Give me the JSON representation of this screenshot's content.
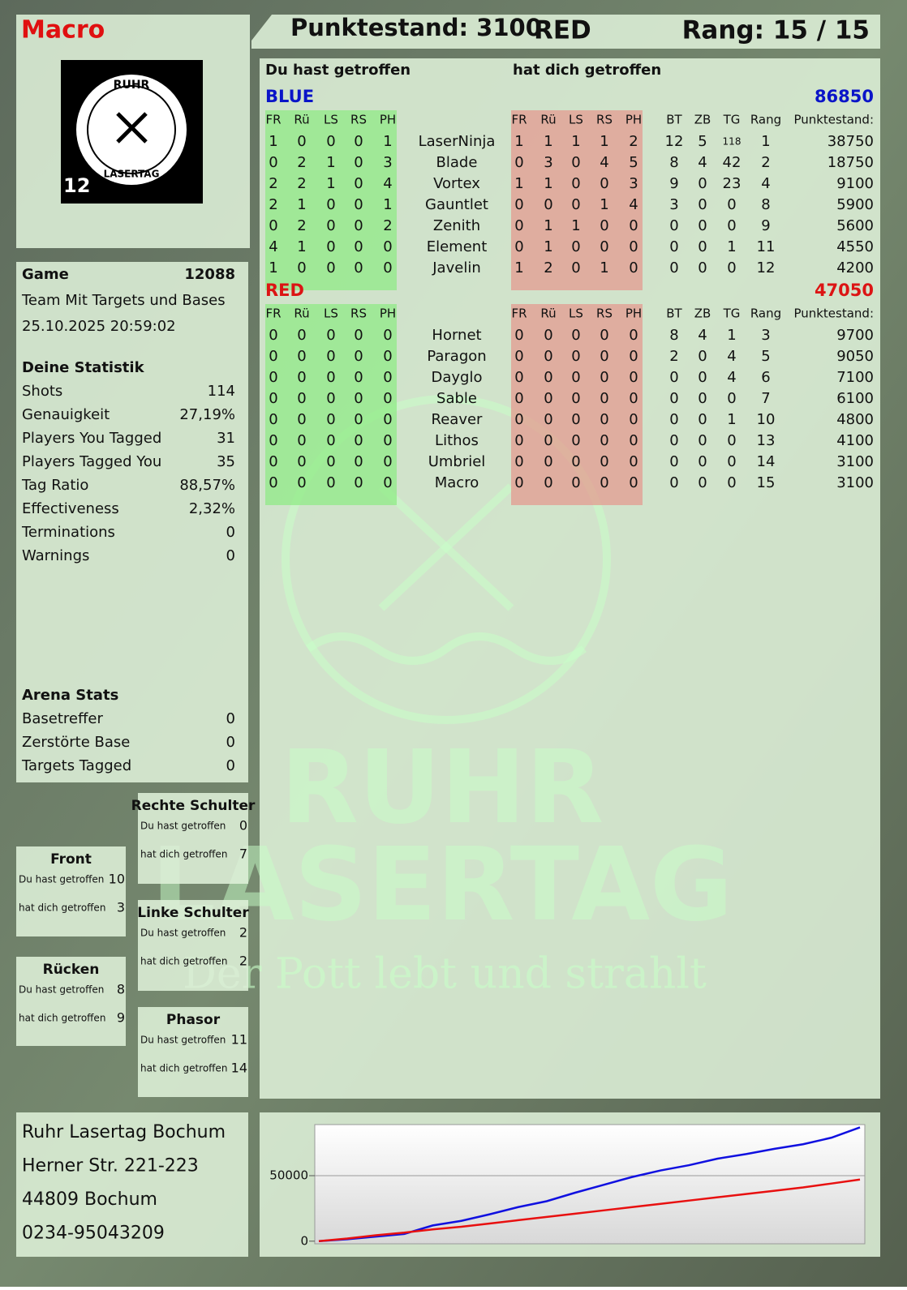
{
  "header": {
    "player": "Macro",
    "score": "Punktestand: 3100",
    "team": "RED",
    "rank": "Rang: 15 / 15"
  },
  "logo": {
    "top": "RUHR",
    "bottom": "LASERTAG",
    "badge": "12"
  },
  "watermark": {
    "line1": "RUHR",
    "line2": "LASERTAG",
    "slogan": "Der Pott lebt und strahlt"
  },
  "game": {
    "label": "Game",
    "id": "12088",
    "mode": "Team Mit Targets und Bases",
    "date": "25.10.2025 20:59:02"
  },
  "stats": {
    "title": "Deine Statistik",
    "rows": [
      [
        "Shots",
        "114"
      ],
      [
        "Genauigkeit",
        "27,19%"
      ],
      [
        "Players You Tagged",
        "31"
      ],
      [
        "Players Tagged You",
        "35"
      ],
      [
        "Tag Ratio",
        "88,57%"
      ],
      [
        "Effectiveness",
        "2,32%"
      ],
      [
        "Terminations",
        "0"
      ],
      [
        "Warnings",
        "0"
      ]
    ]
  },
  "arena": {
    "title": "Arena Stats",
    "rows": [
      [
        "Basetreffer",
        "0"
      ],
      [
        "Zerstörte Base",
        "0"
      ],
      [
        "Targets Tagged",
        "0"
      ]
    ]
  },
  "zones": [
    {
      "title": "Front",
      "hit_label": "Du hast getroffen",
      "hit": 10,
      "got_label": "hat dich getroffen",
      "got": 3
    },
    {
      "title": "Rechte Schulter",
      "hit_label": "Du hast getroffen",
      "hit": 0,
      "got_label": "hat dich getroffen",
      "got": 7
    },
    {
      "title": "Linke Schulter",
      "hit_label": "Du hast getroffen",
      "hit": 2,
      "got_label": "hat dich getroffen",
      "got": 2
    },
    {
      "title": "Rücken",
      "hit_label": "Du hast getroffen",
      "hit": 8,
      "got_label": "hat dich getroffen",
      "got": 9
    },
    {
      "title": "Phasor",
      "hit_label": "Du hast getroffen",
      "hit": 11,
      "got_label": "hat dich getroffen",
      "got": 14
    }
  ],
  "scoreboard": {
    "hit_heading": "Du hast getroffen",
    "got_heading": "hat dich getroffen",
    "hit_columns": [
      "FR",
      "Rü",
      "LS",
      "RS",
      "PH"
    ],
    "got_columns": [
      "FR",
      "Rü",
      "LS",
      "RS",
      "PH"
    ],
    "stat_columns": [
      "BT",
      "ZB",
      "TG",
      "Rang",
      "Punktestand:"
    ],
    "teams": [
      {
        "name": "BLUE",
        "color": "#0a14c8",
        "score": 86850,
        "players": [
          {
            "name": "LaserNinja",
            "hit": [
              1,
              0,
              0,
              0,
              1
            ],
            "got": [
              1,
              1,
              1,
              1,
              2
            ],
            "stats": [
              12,
              5,
              118,
              1,
              38750
            ]
          },
          {
            "name": "Blade",
            "hit": [
              0,
              2,
              1,
              0,
              3
            ],
            "got": [
              0,
              3,
              0,
              4,
              5
            ],
            "stats": [
              8,
              4,
              42,
              2,
              18750
            ]
          },
          {
            "name": "Vortex",
            "hit": [
              2,
              2,
              1,
              0,
              4
            ],
            "got": [
              1,
              1,
              0,
              0,
              3
            ],
            "stats": [
              9,
              0,
              23,
              4,
              9100
            ]
          },
          {
            "name": "Gauntlet",
            "hit": [
              2,
              1,
              0,
              0,
              1
            ],
            "got": [
              0,
              0,
              0,
              1,
              4
            ],
            "stats": [
              3,
              0,
              0,
              8,
              5900
            ]
          },
          {
            "name": "Zenith",
            "hit": [
              0,
              2,
              0,
              0,
              2
            ],
            "got": [
              0,
              1,
              1,
              0,
              0
            ],
            "stats": [
              0,
              0,
              0,
              9,
              5600
            ]
          },
          {
            "name": "Element",
            "hit": [
              4,
              1,
              0,
              0,
              0
            ],
            "got": [
              0,
              1,
              0,
              0,
              0
            ],
            "stats": [
              0,
              0,
              1,
              11,
              4550
            ]
          },
          {
            "name": "Javelin",
            "hit": [
              1,
              0,
              0,
              0,
              0
            ],
            "got": [
              1,
              2,
              0,
              1,
              0
            ],
            "stats": [
              0,
              0,
              0,
              12,
              4200
            ]
          }
        ]
      },
      {
        "name": "RED",
        "color": "#dc1414",
        "score": 47050,
        "players": [
          {
            "name": "Hornet",
            "hit": [
              0,
              0,
              0,
              0,
              0
            ],
            "got": [
              0,
              0,
              0,
              0,
              0
            ],
            "stats": [
              8,
              4,
              1,
              3,
              9700
            ]
          },
          {
            "name": "Paragon",
            "hit": [
              0,
              0,
              0,
              0,
              0
            ],
            "got": [
              0,
              0,
              0,
              0,
              0
            ],
            "stats": [
              2,
              0,
              4,
              5,
              9050
            ]
          },
          {
            "name": "Dayglo",
            "hit": [
              0,
              0,
              0,
              0,
              0
            ],
            "got": [
              0,
              0,
              0,
              0,
              0
            ],
            "stats": [
              0,
              0,
              4,
              6,
              7100
            ]
          },
          {
            "name": "Sable",
            "hit": [
              0,
              0,
              0,
              0,
              0
            ],
            "got": [
              0,
              0,
              0,
              0,
              0
            ],
            "stats": [
              0,
              0,
              0,
              7,
              6100
            ]
          },
          {
            "name": "Reaver",
            "hit": [
              0,
              0,
              0,
              0,
              0
            ],
            "got": [
              0,
              0,
              0,
              0,
              0
            ],
            "stats": [
              0,
              0,
              1,
              10,
              4800
            ]
          },
          {
            "name": "Lithos",
            "hit": [
              0,
              0,
              0,
              0,
              0
            ],
            "got": [
              0,
              0,
              0,
              0,
              0
            ],
            "stats": [
              0,
              0,
              0,
              13,
              4100
            ]
          },
          {
            "name": "Umbriel",
            "hit": [
              0,
              0,
              0,
              0,
              0
            ],
            "got": [
              0,
              0,
              0,
              0,
              0
            ],
            "stats": [
              0,
              0,
              0,
              14,
              3100
            ]
          },
          {
            "name": "Macro",
            "hit": [
              0,
              0,
              0,
              0,
              0
            ],
            "got": [
              0,
              0,
              0,
              0,
              0
            ],
            "stats": [
              0,
              0,
              0,
              15,
              3100
            ]
          }
        ]
      }
    ]
  },
  "address": {
    "lines": [
      "Ruhr Lasertag Bochum",
      "Herner Str. 221-223",
      "44809 Bochum",
      "0234-95043209"
    ]
  },
  "chart_data": {
    "type": "line",
    "ylim": [
      -2000,
      89000
    ],
    "yticks": [
      0,
      50000
    ],
    "grid": true,
    "series": [
      {
        "name": "BLUE",
        "color": "#1010e0",
        "values": [
          0,
          1500,
          3500,
          5500,
          12000,
          15500,
          20500,
          26000,
          30500,
          37000,
          43000,
          49000,
          54000,
          58000,
          63000,
          66500,
          70500,
          74000,
          79000,
          86850
        ]
      },
      {
        "name": "RED",
        "color": "#e81010",
        "values": [
          0,
          2000,
          4500,
          6500,
          9000,
          11000,
          13500,
          16000,
          18500,
          21000,
          23500,
          26000,
          28500,
          31000,
          33500,
          36000,
          38500,
          41000,
          44000,
          47050
        ]
      }
    ]
  }
}
